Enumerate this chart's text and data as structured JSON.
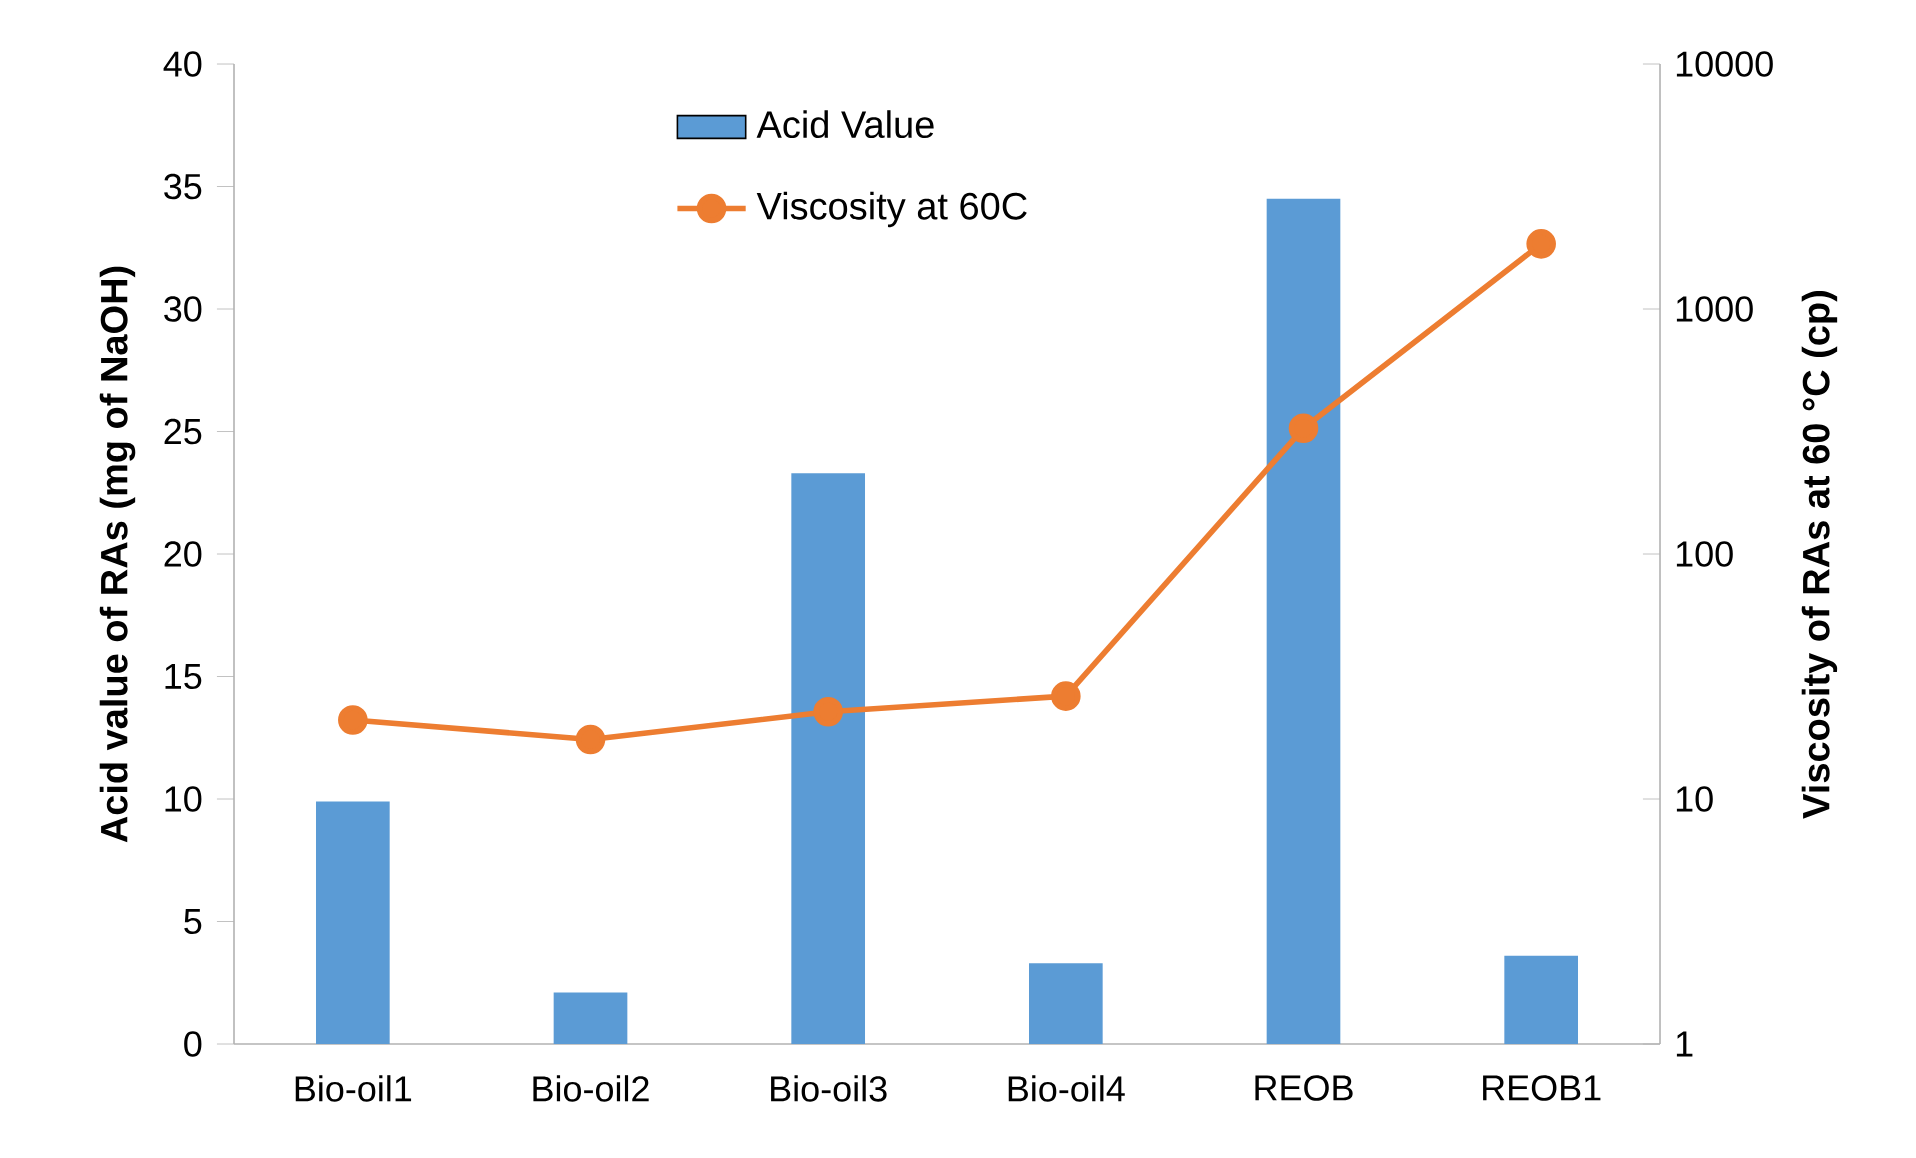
{
  "chart_data": {
    "type": "bar",
    "categories": [
      "Bio-oil1",
      "Bio-oil2",
      "Bio-oil3",
      "Bio-oil4",
      "REOB",
      "REOB1"
    ],
    "ylabel": "Acid value of RAs (mg of NaOH)",
    "y2label": "Viscosity of RAs at 60 °C (cp)",
    "ylim": [
      0,
      40
    ],
    "yticks": [
      0,
      5,
      10,
      15,
      20,
      25,
      30,
      35,
      40
    ],
    "y2lim": [
      1,
      10000
    ],
    "y2ticks": [
      1,
      10,
      100,
      1000,
      10000
    ],
    "log": "y2",
    "legend": "top",
    "grid": false,
    "series": [
      {
        "name": "Acid Value",
        "color": "#5b9bd5",
        "values": [
          9.9,
          2.1,
          23.3,
          3.3,
          34.5,
          3.6
        ]
      },
      {
        "name": "Viscosity at 60C",
        "type": "line",
        "axis": "y2",
        "color": "#ed7d31",
        "marker": "circle",
        "line_style": "solid",
        "values": [
          21,
          17.5,
          22.7,
          26.3,
          326,
          1845
        ]
      }
    ]
  }
}
